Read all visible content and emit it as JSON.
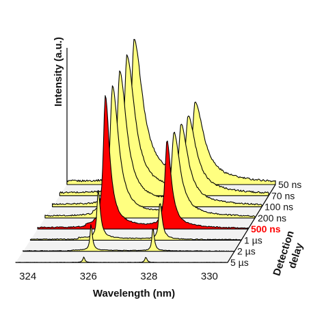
{
  "chart_data": {
    "type": "area",
    "projection": "3d-waterfall",
    "xlabel": "Wavelength (nm)",
    "ylabel": "Intensity (a.u.)",
    "zlabel": [
      "Detection",
      "delay"
    ],
    "xlim": [
      323.6,
      330.6
    ],
    "x_ticks": [
      324,
      326,
      328,
      330
    ],
    "highlight_color": "#ff0000",
    "fill_color": "#ffff80",
    "series": [
      {
        "name": "50 ns",
        "color": "#ffff80",
        "peaks": [
          {
            "x": 325.85,
            "h": 1.0,
            "w": 0.1
          },
          {
            "x": 327.9,
            "h": 0.55,
            "w": 0.1
          }
        ]
      },
      {
        "name": "70 ns",
        "color": "#ffff80",
        "peaks": [
          {
            "x": 325.85,
            "h": 0.98,
            "w": 0.1
          },
          {
            "x": 327.9,
            "h": 0.54,
            "w": 0.1
          }
        ]
      },
      {
        "name": "100 ns",
        "color": "#ffff80",
        "peaks": [
          {
            "x": 325.85,
            "h": 0.95,
            "w": 0.1
          },
          {
            "x": 327.9,
            "h": 0.57,
            "w": 0.1
          }
        ]
      },
      {
        "name": "200 ns",
        "color": "#ffff80",
        "peaks": [
          {
            "x": 325.85,
            "h": 0.93,
            "w": 0.1
          },
          {
            "x": 327.9,
            "h": 0.6,
            "w": 0.1
          }
        ]
      },
      {
        "name": "500 ns",
        "color": "#ff0000",
        "peaks": [
          {
            "x": 325.85,
            "h": 0.95,
            "w": 0.08
          },
          {
            "x": 327.9,
            "h": 0.63,
            "w": 0.08
          }
        ]
      },
      {
        "name": "1 µs",
        "color": "#ffff80",
        "peaks": [
          {
            "x": 325.85,
            "h": 0.35,
            "w": 0.05
          },
          {
            "x": 327.9,
            "h": 0.27,
            "w": 0.05
          }
        ]
      },
      {
        "name": "2 µs",
        "color": "#ffff80",
        "peaks": [
          {
            "x": 325.85,
            "h": 0.19,
            "w": 0.04
          },
          {
            "x": 327.9,
            "h": 0.17,
            "w": 0.04
          }
        ]
      },
      {
        "name": "5 µs",
        "color": "#ffff80",
        "peaks": [
          {
            "x": 325.85,
            "h": 0.04,
            "w": 0.04
          },
          {
            "x": 327.9,
            "h": 0.04,
            "w": 0.04
          }
        ]
      }
    ]
  }
}
